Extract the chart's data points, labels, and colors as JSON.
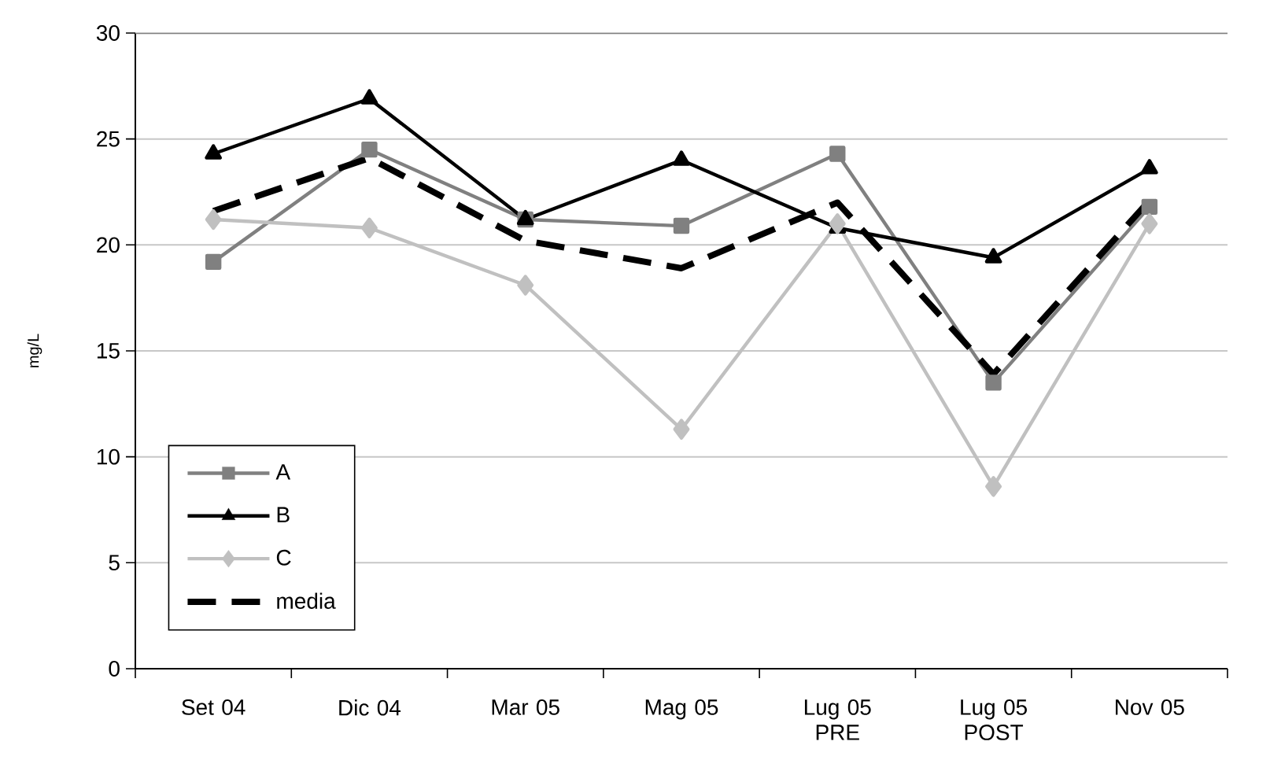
{
  "chart_data": {
    "type": "line",
    "ylabel": "mg/L",
    "categories": [
      "Set 04",
      "Dic 04",
      "Mar 05",
      "Mag 05",
      "Lug 05 PRE",
      "Lug 05 POST",
      "Nov 05"
    ],
    "series": [
      {
        "name": "A",
        "color": "#808080",
        "marker": "square",
        "line_style": "solid",
        "values": [
          19.2,
          24.5,
          21.2,
          20.9,
          24.3,
          13.5,
          21.8
        ]
      },
      {
        "name": "B",
        "color": "#000000",
        "marker": "triangle",
        "line_style": "solid",
        "values": [
          24.3,
          26.9,
          21.2,
          24.0,
          20.8,
          19.4,
          23.6
        ]
      },
      {
        "name": "C",
        "color": "#c0c0c0",
        "marker": "diamond",
        "line_style": "solid",
        "values": [
          21.2,
          20.8,
          18.1,
          11.3,
          21.0,
          8.6,
          21.0
        ]
      },
      {
        "name": "media",
        "color": "#000000",
        "marker": "none",
        "line_style": "dashed",
        "values": [
          21.6,
          24.1,
          20.2,
          18.9,
          22.0,
          13.9,
          22.1
        ]
      }
    ],
    "ylim": [
      0,
      30
    ],
    "yticks": [
      0,
      5,
      10,
      15,
      20,
      25,
      30
    ],
    "grid": "y",
    "legend": "bottom left"
  }
}
